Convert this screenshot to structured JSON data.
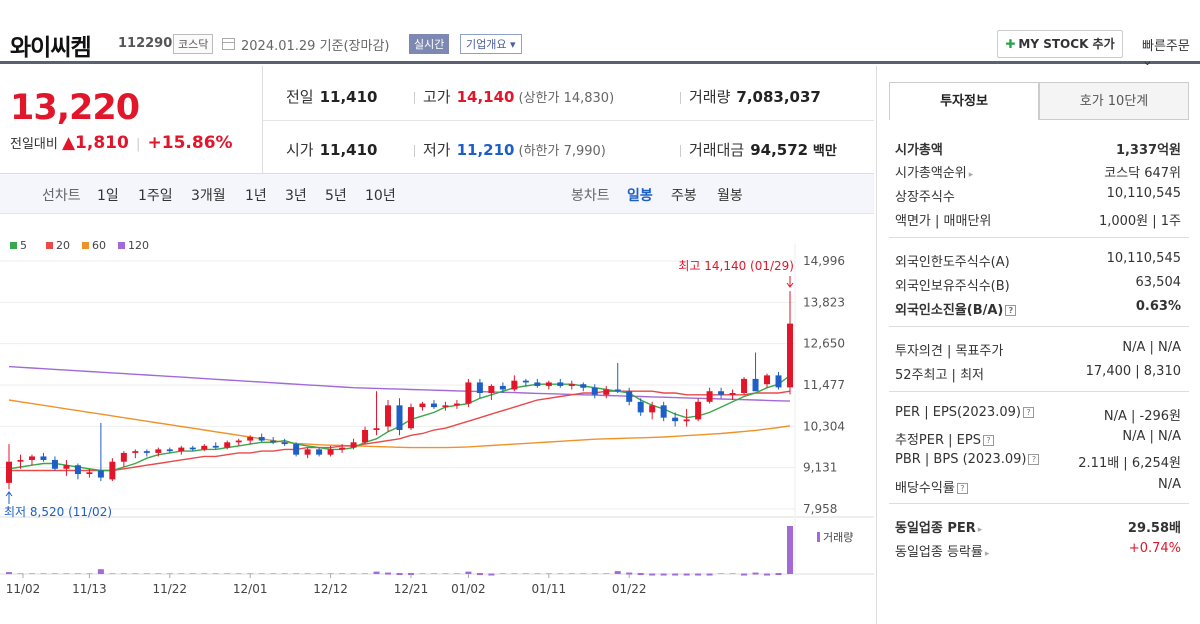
{
  "header": {
    "stock_name": "와이씨켐",
    "stock_code": "112290",
    "market_tag": "코스닥",
    "date_text": "2024.01.29 기준(장마감)",
    "realtime_label": "실시간",
    "company_label": "기업개요 ▾",
    "mystock_label": "MY STOCK 추가",
    "quick_order_label": "빠른주문 ⌄"
  },
  "summary": {
    "current_price": "13,220",
    "change_label": "전일대비",
    "change_value": "▲1,810",
    "change_pct": "+15.86%",
    "prev_label": "전일",
    "prev_value": "11,410",
    "high_label": "고가",
    "high_value": "14,140",
    "upper_limit": "(상한가 14,830)",
    "volume_label": "거래량",
    "volume_value": "7,083,037",
    "open_label": "시가",
    "open_value": "11,410",
    "low_label": "저가",
    "low_value": "11,210",
    "lower_limit": "(하한가 7,990)",
    "amount_label": "거래대금",
    "amount_value": "94,572",
    "amount_unit": "백만"
  },
  "period_tabs": {
    "line_label": "선차트",
    "line_items": [
      "1일",
      "1주일",
      "3개월",
      "1년",
      "3년",
      "5년",
      "10년"
    ],
    "candle_label": "봉차트",
    "candle_items": [
      "일봉",
      "주봉",
      "월봉"
    ],
    "active_candle": "일봉"
  },
  "chart_data": {
    "type": "candlestick",
    "legend": [
      {
        "name": "5",
        "color": "#3aa84a"
      },
      {
        "name": "20",
        "color": "#e84a4a"
      },
      {
        "name": "60",
        "color": "#f0922a"
      },
      {
        "name": "120",
        "color": "#a26ad6"
      }
    ],
    "y_ticks": [
      14996,
      13823,
      12650,
      11477,
      10304,
      9131,
      7958
    ],
    "x_ticks": [
      "11/02",
      "11/13",
      "11/22",
      "12/01",
      "12/12",
      "12/21",
      "01/02",
      "01/11",
      "01/22"
    ],
    "high_annotation": "최고 14,140 (01/29)",
    "low_annotation": "최저 8,520 (11/02)",
    "volume_label": "거래량",
    "up_color": "#e2162a",
    "down_color": "#1e5fc7",
    "candles": [
      {
        "o": 8700,
        "h": 9800,
        "l": 8520,
        "c": 9300
      },
      {
        "o": 9300,
        "h": 9500,
        "l": 9100,
        "c": 9350
      },
      {
        "o": 9350,
        "h": 9500,
        "l": 9200,
        "c": 9450
      },
      {
        "o": 9450,
        "h": 9550,
        "l": 9300,
        "c": 9350
      },
      {
        "o": 9350,
        "h": 9450,
        "l": 9050,
        "c": 9100
      },
      {
        "o": 9100,
        "h": 9350,
        "l": 8900,
        "c": 9200
      },
      {
        "o": 9200,
        "h": 9250,
        "l": 8800,
        "c": 8950
      },
      {
        "o": 8950,
        "h": 9100,
        "l": 8850,
        "c": 9000
      },
      {
        "o": 9050,
        "h": 10400,
        "l": 8750,
        "c": 8850
      },
      {
        "o": 8800,
        "h": 9400,
        "l": 8750,
        "c": 9300
      },
      {
        "o": 9300,
        "h": 9600,
        "l": 9150,
        "c": 9550
      },
      {
        "o": 9550,
        "h": 9650,
        "l": 9400,
        "c": 9600
      },
      {
        "o": 9600,
        "h": 9650,
        "l": 9450,
        "c": 9550
      },
      {
        "o": 9550,
        "h": 9700,
        "l": 9450,
        "c": 9650
      },
      {
        "o": 9650,
        "h": 9700,
        "l": 9550,
        "c": 9600
      },
      {
        "o": 9600,
        "h": 9750,
        "l": 9500,
        "c": 9700
      },
      {
        "o": 9700,
        "h": 9750,
        "l": 9600,
        "c": 9650
      },
      {
        "o": 9650,
        "h": 9800,
        "l": 9600,
        "c": 9750
      },
      {
        "o": 9750,
        "h": 9850,
        "l": 9650,
        "c": 9700
      },
      {
        "o": 9700,
        "h": 9900,
        "l": 9650,
        "c": 9850
      },
      {
        "o": 9850,
        "h": 9950,
        "l": 9750,
        "c": 9900
      },
      {
        "o": 9900,
        "h": 10050,
        "l": 9800,
        "c": 10000
      },
      {
        "o": 10000,
        "h": 10100,
        "l": 9850,
        "c": 9900
      },
      {
        "o": 9900,
        "h": 10000,
        "l": 9800,
        "c": 9850
      },
      {
        "o": 9850,
        "h": 9950,
        "l": 9750,
        "c": 9800
      },
      {
        "o": 9800,
        "h": 9850,
        "l": 9450,
        "c": 9500
      },
      {
        "o": 9500,
        "h": 9700,
        "l": 9400,
        "c": 9650
      },
      {
        "o": 9650,
        "h": 9700,
        "l": 9450,
        "c": 9500
      },
      {
        "o": 9500,
        "h": 9750,
        "l": 9450,
        "c": 9650
      },
      {
        "o": 9650,
        "h": 9800,
        "l": 9550,
        "c": 9700
      },
      {
        "o": 9700,
        "h": 9950,
        "l": 9650,
        "c": 9850
      },
      {
        "o": 9850,
        "h": 10300,
        "l": 9800,
        "c": 10200
      },
      {
        "o": 10200,
        "h": 11300,
        "l": 10050,
        "c": 10250
      },
      {
        "o": 10300,
        "h": 11050,
        "l": 10150,
        "c": 10900
      },
      {
        "o": 10900,
        "h": 11100,
        "l": 10050,
        "c": 10200
      },
      {
        "o": 10250,
        "h": 10950,
        "l": 10200,
        "c": 10850
      },
      {
        "o": 10850,
        "h": 11000,
        "l": 10750,
        "c": 10950
      },
      {
        "o": 10950,
        "h": 11050,
        "l": 10800,
        "c": 10850
      },
      {
        "o": 10850,
        "h": 11000,
        "l": 10750,
        "c": 10900
      },
      {
        "o": 10900,
        "h": 11050,
        "l": 10800,
        "c": 10950
      },
      {
        "o": 10950,
        "h": 11650,
        "l": 10850,
        "c": 11550
      },
      {
        "o": 11550,
        "h": 11650,
        "l": 11100,
        "c": 11250
      },
      {
        "o": 11250,
        "h": 11500,
        "l": 11050,
        "c": 11450
      },
      {
        "o": 11450,
        "h": 11550,
        "l": 11250,
        "c": 11350
      },
      {
        "o": 11350,
        "h": 11750,
        "l": 11300,
        "c": 11600
      },
      {
        "o": 11600,
        "h": 11650,
        "l": 11450,
        "c": 11550
      },
      {
        "o": 11550,
        "h": 11650,
        "l": 11400,
        "c": 11450
      },
      {
        "o": 11450,
        "h": 11600,
        "l": 11350,
        "c": 11550
      },
      {
        "o": 11550,
        "h": 11650,
        "l": 11400,
        "c": 11450
      },
      {
        "o": 11450,
        "h": 11600,
        "l": 11350,
        "c": 11500
      },
      {
        "o": 11500,
        "h": 11550,
        "l": 11300,
        "c": 11400
      },
      {
        "o": 11400,
        "h": 11500,
        "l": 11100,
        "c": 11200
      },
      {
        "o": 11200,
        "h": 11450,
        "l": 11100,
        "c": 11350
      },
      {
        "o": 11350,
        "h": 12100,
        "l": 11250,
        "c": 11300
      },
      {
        "o": 11300,
        "h": 11400,
        "l": 10900,
        "c": 11000
      },
      {
        "o": 11000,
        "h": 11100,
        "l": 10600,
        "c": 10700
      },
      {
        "o": 10700,
        "h": 11000,
        "l": 10500,
        "c": 10900
      },
      {
        "o": 10900,
        "h": 11000,
        "l": 10450,
        "c": 10550
      },
      {
        "o": 10550,
        "h": 10700,
        "l": 10300,
        "c": 10450
      },
      {
        "o": 10450,
        "h": 10800,
        "l": 10300,
        "c": 10500
      },
      {
        "o": 10500,
        "h": 11100,
        "l": 10450,
        "c": 11000
      },
      {
        "o": 11000,
        "h": 11400,
        "l": 10950,
        "c": 11300
      },
      {
        "o": 11300,
        "h": 11400,
        "l": 11100,
        "c": 11200
      },
      {
        "o": 11200,
        "h": 11350,
        "l": 11050,
        "c": 11250
      },
      {
        "o": 11250,
        "h": 11700,
        "l": 11200,
        "c": 11650
      },
      {
        "o": 11650,
        "h": 12400,
        "l": 11300,
        "c": 11300
      },
      {
        "o": 11500,
        "h": 11800,
        "l": 11400,
        "c": 11750
      },
      {
        "o": 11750,
        "h": 11850,
        "l": 11350,
        "c": 11410
      },
      {
        "o": 11410,
        "h": 14140,
        "l": 11210,
        "c": 13220
      }
    ],
    "volumes": [
      4,
      0,
      0,
      0,
      0,
      0,
      0,
      0,
      10,
      0,
      0,
      0,
      0,
      0,
      0,
      0,
      0,
      0,
      0,
      0,
      0,
      0,
      0,
      0,
      0,
      0,
      0,
      0,
      0,
      0,
      0,
      0,
      5,
      3,
      2,
      2,
      0,
      0,
      0,
      0,
      5,
      2,
      1,
      0,
      0,
      0,
      0,
      0,
      0,
      0,
      0,
      0,
      0,
      6,
      3,
      2,
      1,
      1,
      1,
      1,
      1,
      1,
      0,
      0,
      1,
      3,
      1,
      2,
      100
    ],
    "ma5": [
      9100,
      9150,
      9200,
      9250,
      9250,
      9200,
      9150,
      9100,
      9050,
      9050,
      9150,
      9250,
      9400,
      9500,
      9550,
      9600,
      9600,
      9650,
      9650,
      9700,
      9750,
      9800,
      9850,
      9850,
      9900,
      9800,
      9750,
      9700,
      9650,
      9650,
      9700,
      9850,
      9950,
      10150,
      10300,
      10500,
      10600,
      10700,
      10850,
      10900,
      10950,
      11100,
      11200,
      11300,
      11400,
      11450,
      11500,
      11500,
      11500,
      11500,
      11450,
      11400,
      11350,
      11300,
      11250,
      11050,
      10900,
      10800,
      10650,
      10550,
      10600,
      10700,
      10850,
      11000,
      11150,
      11250,
      11400,
      11500,
      11750
    ],
    "ma20": [
      9050,
      9050,
      9050,
      9050,
      9050,
      9050,
      9050,
      9050,
      9050,
      9050,
      9100,
      9150,
      9200,
      9250,
      9300,
      9350,
      9400,
      9450,
      9450,
      9500,
      9550,
      9550,
      9600,
      9600,
      9650,
      9650,
      9700,
      9700,
      9700,
      9750,
      9750,
      9800,
      9850,
      9900,
      9950,
      10050,
      10100,
      10200,
      10250,
      10350,
      10450,
      10550,
      10650,
      10750,
      10850,
      10950,
      11050,
      11100,
      11150,
      11200,
      11250,
      11250,
      11300,
      11300,
      11300,
      11300,
      11300,
      11250,
      11250,
      11200,
      11200,
      11200,
      11200,
      11200,
      11200,
      11250,
      11250,
      11250,
      11300
    ],
    "ma60": [
      11050,
      11000,
      10950,
      10900,
      10850,
      10800,
      10750,
      10700,
      10650,
      10600,
      10550,
      10500,
      10450,
      10400,
      10350,
      10300,
      10250,
      10200,
      10150,
      10100,
      10050,
      10000,
      9950,
      9900,
      9850,
      9820,
      9800,
      9780,
      9770,
      9760,
      9750,
      9740,
      9730,
      9720,
      9710,
      9700,
      9700,
      9700,
      9700,
      9710,
      9720,
      9740,
      9760,
      9780,
      9800,
      9820,
      9840,
      9860,
      9880,
      9900,
      9920,
      9940,
      9950,
      9960,
      9970,
      9980,
      9990,
      10000,
      10020,
      10040,
      10060,
      10080,
      10100,
      10130,
      10160,
      10190,
      10230,
      10270,
      10320
    ],
    "ma120": [
      12000,
      11980,
      11960,
      11940,
      11920,
      11900,
      11880,
      11860,
      11840,
      11820,
      11800,
      11780,
      11760,
      11740,
      11720,
      11700,
      11680,
      11660,
      11640,
      11620,
      11600,
      11580,
      11560,
      11540,
      11520,
      11500,
      11480,
      11460,
      11440,
      11420,
      11400,
      11390,
      11380,
      11370,
      11360,
      11350,
      11340,
      11330,
      11320,
      11310,
      11300,
      11290,
      11280,
      11270,
      11260,
      11250,
      11240,
      11230,
      11220,
      11210,
      11200,
      11190,
      11180,
      11170,
      11160,
      11150,
      11140,
      11130,
      11120,
      11110,
      11100,
      11090,
      11080,
      11070,
      11060,
      11050,
      11040,
      11030,
      11020
    ]
  },
  "right_panel": {
    "tab_invest": "투자정보",
    "tab_hoga": "호가 10단계",
    "market_cap_label": "시가총액",
    "market_cap_value": "1,337억원",
    "cap_rank_label": "시가총액순위",
    "cap_rank_value": "코스닥 647위",
    "shares_label": "상장주식수",
    "shares_value": "10,110,545",
    "par_label": "액면가 | 매매단위",
    "par_value": "1,000원 | 1주",
    "foreign_limit_label": "외국인한도주식수(A)",
    "foreign_limit_value": "10,110,545",
    "foreign_hold_label": "외국인보유주식수(B)",
    "foreign_hold_value": "63,504",
    "foreign_ratio_label": "외국인소진율(B/A)",
    "foreign_ratio_value": "0.63%",
    "opinion_label": "투자의견 | 목표주가",
    "opinion_value": "N/A | N/A",
    "week52_label": "52주최고 | 최저",
    "week52_value": "17,400 | 8,310",
    "per_label": "PER | EPS(2023.09)",
    "per_value": "N/A | -296원",
    "est_per_label": "추정PER | EPS",
    "est_per_value": "N/A | N/A",
    "pbr_label": "PBR | BPS (2023.09)",
    "pbr_value": "2.11배 | 6,254원",
    "dividend_label": "배당수익률",
    "dividend_value": "N/A",
    "sector_per_label": "동일업종 PER",
    "sector_per_value": "29.58배",
    "sector_change_label": "동일업종 등락률",
    "sector_change_value": "+0.74%"
  }
}
